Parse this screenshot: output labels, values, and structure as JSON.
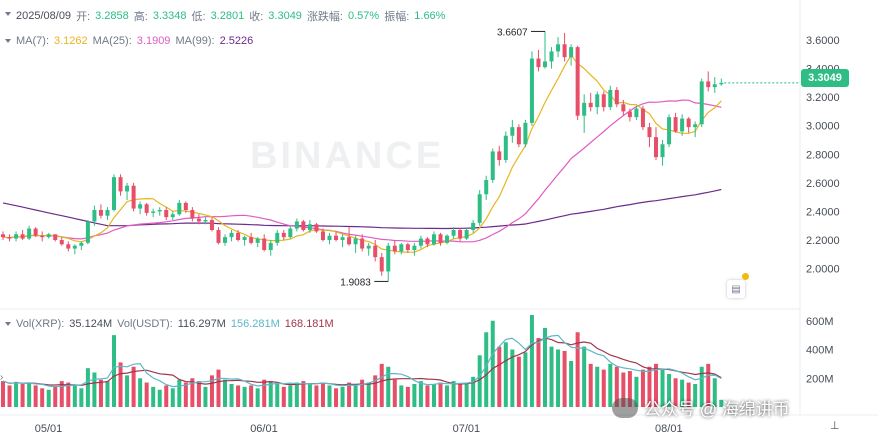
{
  "header": {
    "date": "2025/08/09",
    "open_label": "开:",
    "open": "3.2858",
    "high_label": "高:",
    "high": "3.3348",
    "low_label": "低:",
    "low": "3.2801",
    "close_label": "收:",
    "close": "3.3049",
    "change_label": "涨跌幅:",
    "change": "0.57%",
    "amp_label": "振幅:",
    "amp": "1.66%"
  },
  "ma_row": {
    "ma7_label": "MA(7):",
    "ma7": "3.1262",
    "ma25_label": "MA(25):",
    "ma25": "3.1909",
    "ma99_label": "MA(99):",
    "ma99": "2.5226"
  },
  "vol_row": {
    "vol_xrp_label": "Vol(XRP):",
    "vol_xrp": "35.124M",
    "vol_usdt_label": "Vol(USDT):",
    "vol_usdt": "116.297M",
    "vol_ma1": "156.281M",
    "vol_ma2": "168.181M"
  },
  "current_price": "3.3049",
  "watermark": "BINANCE",
  "credit_text": "公众号 @ 海绵讲币",
  "colors": {
    "up": "#2ebd85",
    "down": "#e74e67",
    "ma7": "#e8b51f",
    "ma25": "#e05cc4",
    "ma99": "#6b2a8c",
    "vol_ma1": "#5bb8c9",
    "vol_ma2": "#a0364b",
    "text": "#474d57",
    "label": "#707a8a"
  },
  "chart_data": {
    "type": "candlestick",
    "x_tick_labels": [
      "05/01",
      "06/01",
      "07/01",
      "08/01"
    ],
    "price_ticks": [
      "3.6000",
      "3.4000",
      "3.2000",
      "3.0000",
      "2.8000",
      "2.6000",
      "2.4000",
      "2.2000",
      "2.0000"
    ],
    "price_ylim": [
      1.78,
      3.74
    ],
    "volume_ticks": [
      "600M",
      "400M",
      "200M"
    ],
    "volume_ylim": [
      0,
      640
    ],
    "annotations": {
      "high": "3.6607",
      "low": "1.9083"
    },
    "candles": [
      {
        "o": 2.24,
        "h": 2.26,
        "l": 2.2,
        "c": 2.22,
        "v": 180
      },
      {
        "o": 2.22,
        "h": 2.24,
        "l": 2.19,
        "c": 2.21,
        "v": 150
      },
      {
        "o": 2.21,
        "h": 2.26,
        "l": 2.19,
        "c": 2.24,
        "v": 175
      },
      {
        "o": 2.24,
        "h": 2.27,
        "l": 2.2,
        "c": 2.21,
        "v": 160
      },
      {
        "o": 2.21,
        "h": 2.3,
        "l": 2.2,
        "c": 2.28,
        "v": 170
      },
      {
        "o": 2.28,
        "h": 2.29,
        "l": 2.22,
        "c": 2.23,
        "v": 150
      },
      {
        "o": 2.23,
        "h": 2.26,
        "l": 2.19,
        "c": 2.22,
        "v": 130
      },
      {
        "o": 2.22,
        "h": 2.25,
        "l": 2.21,
        "c": 2.24,
        "v": 120
      },
      {
        "o": 2.24,
        "h": 2.24,
        "l": 2.19,
        "c": 2.2,
        "v": 140
      },
      {
        "o": 2.2,
        "h": 2.22,
        "l": 2.16,
        "c": 2.17,
        "v": 180
      },
      {
        "o": 2.17,
        "h": 2.19,
        "l": 2.12,
        "c": 2.14,
        "v": 170
      },
      {
        "o": 2.14,
        "h": 2.17,
        "l": 2.1,
        "c": 2.16,
        "v": 150
      },
      {
        "o": 2.16,
        "h": 2.19,
        "l": 2.13,
        "c": 2.18,
        "v": 130
      },
      {
        "o": 2.18,
        "h": 2.34,
        "l": 2.17,
        "c": 2.33,
        "v": 270
      },
      {
        "o": 2.33,
        "h": 2.44,
        "l": 2.3,
        "c": 2.41,
        "v": 240
      },
      {
        "o": 2.41,
        "h": 2.45,
        "l": 2.35,
        "c": 2.37,
        "v": 190
      },
      {
        "o": 2.37,
        "h": 2.43,
        "l": 2.34,
        "c": 2.41,
        "v": 180
      },
      {
        "o": 2.41,
        "h": 2.66,
        "l": 2.4,
        "c": 2.64,
        "v": 500
      },
      {
        "o": 2.64,
        "h": 2.66,
        "l": 2.51,
        "c": 2.54,
        "v": 310
      },
      {
        "o": 2.54,
        "h": 2.6,
        "l": 2.48,
        "c": 2.58,
        "v": 220
      },
      {
        "o": 2.58,
        "h": 2.6,
        "l": 2.4,
        "c": 2.42,
        "v": 280
      },
      {
        "o": 2.42,
        "h": 2.47,
        "l": 2.38,
        "c": 2.45,
        "v": 200
      },
      {
        "o": 2.45,
        "h": 2.46,
        "l": 2.37,
        "c": 2.39,
        "v": 170
      },
      {
        "o": 2.39,
        "h": 2.42,
        "l": 2.36,
        "c": 2.4,
        "v": 140
      },
      {
        "o": 2.4,
        "h": 2.43,
        "l": 2.37,
        "c": 2.41,
        "v": 120
      },
      {
        "o": 2.41,
        "h": 2.43,
        "l": 2.34,
        "c": 2.36,
        "v": 150
      },
      {
        "o": 2.36,
        "h": 2.4,
        "l": 2.34,
        "c": 2.38,
        "v": 130
      },
      {
        "o": 2.38,
        "h": 2.48,
        "l": 2.37,
        "c": 2.46,
        "v": 190
      },
      {
        "o": 2.46,
        "h": 2.47,
        "l": 2.39,
        "c": 2.41,
        "v": 170
      },
      {
        "o": 2.41,
        "h": 2.43,
        "l": 2.33,
        "c": 2.35,
        "v": 200
      },
      {
        "o": 2.35,
        "h": 2.38,
        "l": 2.31,
        "c": 2.33,
        "v": 180
      },
      {
        "o": 2.33,
        "h": 2.36,
        "l": 2.31,
        "c": 2.34,
        "v": 140
      },
      {
        "o": 2.34,
        "h": 2.36,
        "l": 2.26,
        "c": 2.27,
        "v": 220
      },
      {
        "o": 2.27,
        "h": 2.29,
        "l": 2.17,
        "c": 2.18,
        "v": 260
      },
      {
        "o": 2.18,
        "h": 2.24,
        "l": 2.16,
        "c": 2.22,
        "v": 190
      },
      {
        "o": 2.22,
        "h": 2.27,
        "l": 2.19,
        "c": 2.25,
        "v": 160
      },
      {
        "o": 2.25,
        "h": 2.27,
        "l": 2.19,
        "c": 2.2,
        "v": 150
      },
      {
        "o": 2.2,
        "h": 2.23,
        "l": 2.16,
        "c": 2.22,
        "v": 140
      },
      {
        "o": 2.22,
        "h": 2.25,
        "l": 2.17,
        "c": 2.18,
        "v": 150
      },
      {
        "o": 2.18,
        "h": 2.22,
        "l": 2.15,
        "c": 2.21,
        "v": 130
      },
      {
        "o": 2.21,
        "h": 2.24,
        "l": 2.12,
        "c": 2.13,
        "v": 190
      },
      {
        "o": 2.13,
        "h": 2.2,
        "l": 2.09,
        "c": 2.18,
        "v": 180
      },
      {
        "o": 2.18,
        "h": 2.27,
        "l": 2.16,
        "c": 2.25,
        "v": 170
      },
      {
        "o": 2.25,
        "h": 2.27,
        "l": 2.2,
        "c": 2.22,
        "v": 140
      },
      {
        "o": 2.22,
        "h": 2.3,
        "l": 2.21,
        "c": 2.28,
        "v": 150
      },
      {
        "o": 2.28,
        "h": 2.35,
        "l": 2.26,
        "c": 2.33,
        "v": 170
      },
      {
        "o": 2.33,
        "h": 2.34,
        "l": 2.26,
        "c": 2.27,
        "v": 180
      },
      {
        "o": 2.27,
        "h": 2.34,
        "l": 2.25,
        "c": 2.31,
        "v": 160
      },
      {
        "o": 2.31,
        "h": 2.32,
        "l": 2.25,
        "c": 2.26,
        "v": 150
      },
      {
        "o": 2.26,
        "h": 2.28,
        "l": 2.19,
        "c": 2.2,
        "v": 170
      },
      {
        "o": 2.2,
        "h": 2.25,
        "l": 2.17,
        "c": 2.23,
        "v": 150
      },
      {
        "o": 2.23,
        "h": 2.26,
        "l": 2.19,
        "c": 2.2,
        "v": 130
      },
      {
        "o": 2.2,
        "h": 2.24,
        "l": 2.15,
        "c": 2.22,
        "v": 140
      },
      {
        "o": 2.22,
        "h": 2.29,
        "l": 2.16,
        "c": 2.17,
        "v": 170
      },
      {
        "o": 2.17,
        "h": 2.23,
        "l": 2.11,
        "c": 2.21,
        "v": 160
      },
      {
        "o": 2.21,
        "h": 2.24,
        "l": 2.12,
        "c": 2.14,
        "v": 190
      },
      {
        "o": 2.14,
        "h": 2.18,
        "l": 2.09,
        "c": 2.16,
        "v": 170
      },
      {
        "o": 2.16,
        "h": 2.2,
        "l": 2.05,
        "c": 2.08,
        "v": 220
      },
      {
        "o": 2.08,
        "h": 2.11,
        "l": 1.95,
        "c": 1.98,
        "v": 300
      },
      {
        "o": 1.98,
        "h": 2.18,
        "l": 1.91,
        "c": 2.16,
        "v": 280
      },
      {
        "o": 2.16,
        "h": 2.2,
        "l": 2.1,
        "c": 2.12,
        "v": 190
      },
      {
        "o": 2.12,
        "h": 2.18,
        "l": 2.1,
        "c": 2.17,
        "v": 150
      },
      {
        "o": 2.17,
        "h": 2.18,
        "l": 2.11,
        "c": 2.13,
        "v": 140
      },
      {
        "o": 2.13,
        "h": 2.18,
        "l": 2.09,
        "c": 2.16,
        "v": 160
      },
      {
        "o": 2.16,
        "h": 2.23,
        "l": 2.14,
        "c": 2.21,
        "v": 180
      },
      {
        "o": 2.21,
        "h": 2.22,
        "l": 2.15,
        "c": 2.17,
        "v": 150
      },
      {
        "o": 2.17,
        "h": 2.26,
        "l": 2.16,
        "c": 2.24,
        "v": 160
      },
      {
        "o": 2.24,
        "h": 2.25,
        "l": 2.16,
        "c": 2.18,
        "v": 170
      },
      {
        "o": 2.18,
        "h": 2.24,
        "l": 2.17,
        "c": 2.23,
        "v": 150
      },
      {
        "o": 2.23,
        "h": 2.29,
        "l": 2.21,
        "c": 2.27,
        "v": 180
      },
      {
        "o": 2.27,
        "h": 2.28,
        "l": 2.19,
        "c": 2.21,
        "v": 160
      },
      {
        "o": 2.21,
        "h": 2.28,
        "l": 2.2,
        "c": 2.27,
        "v": 170
      },
      {
        "o": 2.27,
        "h": 2.34,
        "l": 2.25,
        "c": 2.32,
        "v": 210
      },
      {
        "o": 2.32,
        "h": 2.55,
        "l": 2.3,
        "c": 2.52,
        "v": 360
      },
      {
        "o": 2.52,
        "h": 2.65,
        "l": 2.48,
        "c": 2.62,
        "v": 520
      },
      {
        "o": 2.62,
        "h": 2.84,
        "l": 2.6,
        "c": 2.82,
        "v": 600
      },
      {
        "o": 2.82,
        "h": 2.86,
        "l": 2.72,
        "c": 2.76,
        "v": 420
      },
      {
        "o": 2.76,
        "h": 2.96,
        "l": 2.74,
        "c": 2.93,
        "v": 450
      },
      {
        "o": 2.93,
        "h": 3.04,
        "l": 2.88,
        "c": 2.99,
        "v": 400
      },
      {
        "o": 2.99,
        "h": 3.01,
        "l": 2.85,
        "c": 2.87,
        "v": 350
      },
      {
        "o": 2.87,
        "h": 3.04,
        "l": 2.85,
        "c": 3.02,
        "v": 380
      },
      {
        "o": 3.02,
        "h": 3.52,
        "l": 3.0,
        "c": 3.47,
        "v": 640
      },
      {
        "o": 3.47,
        "h": 3.53,
        "l": 3.38,
        "c": 3.41,
        "v": 480
      },
      {
        "o": 3.41,
        "h": 3.66,
        "l": 3.4,
        "c": 3.45,
        "v": 550
      },
      {
        "o": 3.45,
        "h": 3.55,
        "l": 3.4,
        "c": 3.52,
        "v": 420
      },
      {
        "o": 3.52,
        "h": 3.62,
        "l": 3.48,
        "c": 3.57,
        "v": 400
      },
      {
        "o": 3.57,
        "h": 3.65,
        "l": 3.45,
        "c": 3.48,
        "v": 390
      },
      {
        "o": 3.48,
        "h": 3.57,
        "l": 3.42,
        "c": 3.55,
        "v": 320
      },
      {
        "o": 3.55,
        "h": 3.56,
        "l": 3.04,
        "c": 3.07,
        "v": 520
      },
      {
        "o": 3.07,
        "h": 3.22,
        "l": 2.95,
        "c": 3.16,
        "v": 420
      },
      {
        "o": 3.16,
        "h": 3.23,
        "l": 3.1,
        "c": 3.13,
        "v": 300
      },
      {
        "o": 3.13,
        "h": 3.24,
        "l": 3.08,
        "c": 3.22,
        "v": 280
      },
      {
        "o": 3.22,
        "h": 3.24,
        "l": 3.1,
        "c": 3.13,
        "v": 260
      },
      {
        "o": 3.13,
        "h": 3.28,
        "l": 3.11,
        "c": 3.25,
        "v": 300
      },
      {
        "o": 3.25,
        "h": 3.27,
        "l": 3.13,
        "c": 3.15,
        "v": 280
      },
      {
        "o": 3.15,
        "h": 3.18,
        "l": 3.07,
        "c": 3.1,
        "v": 240
      },
      {
        "o": 3.1,
        "h": 3.12,
        "l": 3.03,
        "c": 3.06,
        "v": 250
      },
      {
        "o": 3.06,
        "h": 3.14,
        "l": 3.04,
        "c": 3.12,
        "v": 210
      },
      {
        "o": 3.12,
        "h": 3.14,
        "l": 2.97,
        "c": 2.99,
        "v": 260
      },
      {
        "o": 2.99,
        "h": 3.02,
        "l": 2.85,
        "c": 2.92,
        "v": 280
      },
      {
        "o": 2.92,
        "h": 2.99,
        "l": 2.76,
        "c": 2.78,
        "v": 300
      },
      {
        "o": 2.78,
        "h": 2.9,
        "l": 2.72,
        "c": 2.87,
        "v": 260
      },
      {
        "o": 2.87,
        "h": 3.08,
        "l": 2.85,
        "c": 3.06,
        "v": 230
      },
      {
        "o": 3.06,
        "h": 3.09,
        "l": 2.95,
        "c": 2.96,
        "v": 200
      },
      {
        "o": 2.96,
        "h": 3.08,
        "l": 2.93,
        "c": 3.05,
        "v": 190
      },
      {
        "o": 3.05,
        "h": 3.06,
        "l": 2.95,
        "c": 2.99,
        "v": 170
      },
      {
        "o": 2.99,
        "h": 3.03,
        "l": 2.92,
        "c": 3.01,
        "v": 160
      },
      {
        "o": 3.01,
        "h": 3.33,
        "l": 2.99,
        "c": 3.31,
        "v": 280
      },
      {
        "o": 3.31,
        "h": 3.38,
        "l": 3.24,
        "c": 3.27,
        "v": 300
      },
      {
        "o": 3.27,
        "h": 3.34,
        "l": 3.23,
        "c": 3.29,
        "v": 200
      },
      {
        "o": 3.29,
        "h": 3.33,
        "l": 3.28,
        "c": 3.3,
        "v": 50
      }
    ]
  }
}
